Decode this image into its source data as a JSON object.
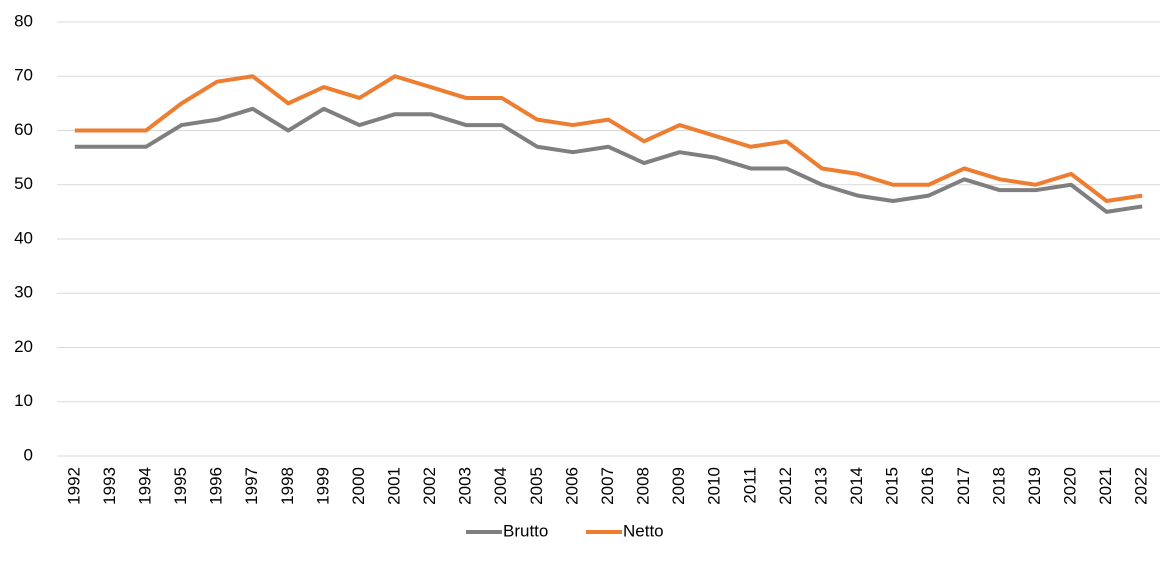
{
  "chart_data": {
    "type": "line",
    "categories": [
      "1992",
      "1993",
      "1994",
      "1995",
      "1996",
      "1997",
      "1998",
      "1999",
      "2000",
      "2001",
      "2002",
      "2003",
      "2004",
      "2005",
      "2006",
      "2007",
      "2008",
      "2009",
      "2010",
      "2011",
      "2012",
      "2013",
      "2014",
      "2015",
      "2016",
      "2017",
      "2018",
      "2019",
      "2020",
      "2021",
      "2022"
    ],
    "series": [
      {
        "name": "Brutto",
        "color": "#7f7f7f",
        "values": [
          57,
          57,
          57,
          61,
          62,
          64,
          60,
          64,
          61,
          63,
          63,
          61,
          61,
          57,
          56,
          57,
          54,
          56,
          55,
          53,
          53,
          50,
          48,
          47,
          48,
          51,
          49,
          49,
          50,
          45,
          46
        ]
      },
      {
        "name": "Netto",
        "color": "#ed7d31",
        "values": [
          60,
          60,
          60,
          65,
          69,
          70,
          65,
          68,
          66,
          70,
          68,
          66,
          66,
          62,
          61,
          62,
          58,
          61,
          59,
          57,
          58,
          53,
          52,
          50,
          50,
          53,
          51,
          50,
          52,
          47,
          48
        ]
      }
    ],
    "ylim": [
      0,
      80
    ],
    "yticks": [
      0,
      10,
      20,
      30,
      40,
      50,
      60,
      70,
      80
    ],
    "grid": true,
    "legend": "bottom"
  }
}
